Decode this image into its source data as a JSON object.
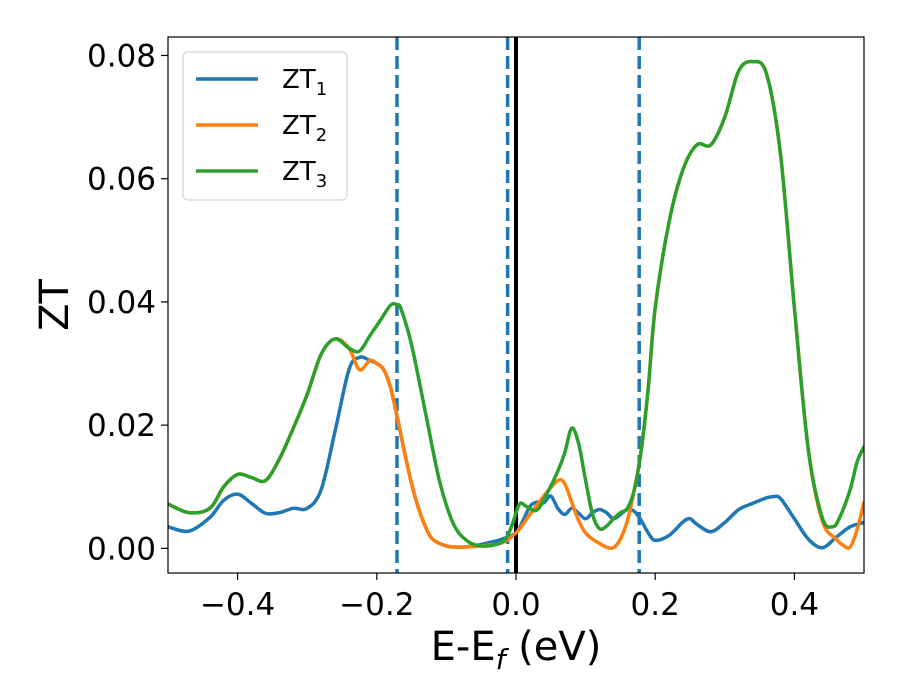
{
  "chart_data": {
    "type": "line",
    "xlabel": "E-E",
    "xlabel_sub": "f",
    "xlabel_unit": " (eV)",
    "ylabel": "ZT",
    "xlim": [
      -0.5,
      0.5
    ],
    "ylim": [
      -0.004,
      0.083
    ],
    "xticks": [
      -0.4,
      -0.2,
      0.0,
      0.2,
      0.4
    ],
    "xtick_labels": [
      "−0.4",
      "−0.2",
      "0.0",
      "0.2",
      "0.4"
    ],
    "yticks": [
      0.0,
      0.02,
      0.04,
      0.06,
      0.08
    ],
    "ytick_labels": [
      "0.00",
      "0.02",
      "0.04",
      "0.06",
      "0.08"
    ],
    "grid": false,
    "legend_position": "top-left",
    "vlines": [
      {
        "x": -0.171,
        "style": "dashed",
        "color": "#1f77b4"
      },
      {
        "x": -0.012,
        "style": "dashed",
        "color": "#1f77b4"
      },
      {
        "x": 0.0,
        "style": "solid",
        "color": "#000000"
      },
      {
        "x": 0.177,
        "style": "dashed",
        "color": "#1f77b4"
      }
    ],
    "series": [
      {
        "name": "ZT",
        "sub": "1",
        "color": "#1f77b4",
        "x": [
          -0.5,
          -0.47,
          -0.44,
          -0.42,
          -0.4,
          -0.38,
          -0.36,
          -0.34,
          -0.32,
          -0.3,
          -0.28,
          -0.26,
          -0.24,
          -0.225,
          -0.21,
          -0.2,
          -0.19,
          -0.18,
          -0.171,
          -0.16,
          -0.15,
          -0.14,
          -0.13,
          -0.12,
          -0.1,
          -0.08,
          -0.06,
          -0.04,
          -0.02,
          0.0,
          0.01,
          0.02,
          0.03,
          0.04,
          0.05,
          0.06,
          0.07,
          0.08,
          0.09,
          0.1,
          0.11,
          0.12,
          0.13,
          0.14,
          0.15,
          0.16,
          0.17,
          0.18,
          0.19,
          0.2,
          0.22,
          0.24,
          0.25,
          0.26,
          0.28,
          0.3,
          0.32,
          0.34,
          0.36,
          0.37,
          0.38,
          0.4,
          0.42,
          0.44,
          0.46,
          0.48,
          0.5
        ],
        "y": [
          0.0035,
          0.0028,
          0.005,
          0.0078,
          0.0088,
          0.0073,
          0.0057,
          0.0058,
          0.0065,
          0.0065,
          0.0095,
          0.019,
          0.029,
          0.031,
          0.0305,
          0.03,
          0.029,
          0.026,
          0.0215,
          0.0155,
          0.0105,
          0.0065,
          0.0035,
          0.0015,
          0.0004,
          0.0002,
          0.0004,
          0.0009,
          0.0015,
          0.0025,
          0.0045,
          0.0068,
          0.0075,
          0.0074,
          0.0085,
          0.0065,
          0.0055,
          0.0065,
          0.0057,
          0.0048,
          0.0058,
          0.0063,
          0.0058,
          0.0048,
          0.0055,
          0.0063,
          0.006,
          0.0045,
          0.0025,
          0.0013,
          0.0021,
          0.0043,
          0.0048,
          0.0039,
          0.0027,
          0.0042,
          0.0063,
          0.0073,
          0.0082,
          0.0084,
          0.0081,
          0.0048,
          0.0015,
          0.0001,
          0.0018,
          0.0035,
          0.0042
        ]
      },
      {
        "name": "ZT",
        "sub": "2",
        "color": "#ff7f0e",
        "x": [
          -0.5,
          -0.47,
          -0.44,
          -0.42,
          -0.4,
          -0.38,
          -0.36,
          -0.34,
          -0.32,
          -0.3,
          -0.28,
          -0.26,
          -0.24,
          -0.225,
          -0.21,
          -0.2,
          -0.19,
          -0.18,
          -0.171,
          -0.16,
          -0.15,
          -0.14,
          -0.13,
          -0.12,
          -0.1,
          -0.08,
          -0.06,
          -0.04,
          -0.02,
          0.0,
          0.02,
          0.04,
          0.06,
          0.07,
          0.08,
          0.09,
          0.1,
          0.11,
          0.12,
          0.13,
          0.14,
          0.15,
          0.16,
          0.17,
          0.18,
          0.19,
          0.2,
          0.22,
          0.24,
          0.26,
          0.28,
          0.3,
          0.32,
          0.34,
          0.36,
          0.38,
          0.4,
          0.42,
          0.44,
          0.46,
          0.47,
          0.48,
          0.49,
          0.5
        ],
        "y": [
          0.0072,
          0.0058,
          0.0065,
          0.01,
          0.012,
          0.0115,
          0.011,
          0.0145,
          0.0195,
          0.025,
          0.0315,
          0.034,
          0.0325,
          0.029,
          0.0305,
          0.03,
          0.029,
          0.026,
          0.0215,
          0.0155,
          0.0105,
          0.0065,
          0.0035,
          0.0015,
          0.0004,
          0.0002,
          0.0003,
          0.0005,
          0.0009,
          0.0025,
          0.0055,
          0.0085,
          0.011,
          0.0105,
          0.0075,
          0.0045,
          0.0025,
          0.0015,
          0.0008,
          0.0002,
          0.0001,
          0.0015,
          0.0045,
          0.0095,
          0.016,
          0.026,
          0.039,
          0.053,
          0.0615,
          0.0655,
          0.0655,
          0.07,
          0.0775,
          0.079,
          0.077,
          0.064,
          0.039,
          0.016,
          0.0045,
          0.0015,
          0.0005,
          0.0002,
          0.003,
          0.0075
        ]
      },
      {
        "name": "ZT",
        "sub": "3",
        "color": "#2ca02c",
        "x": [
          -0.5,
          -0.47,
          -0.44,
          -0.42,
          -0.4,
          -0.38,
          -0.36,
          -0.34,
          -0.32,
          -0.3,
          -0.28,
          -0.26,
          -0.24,
          -0.225,
          -0.21,
          -0.195,
          -0.18,
          -0.171,
          -0.165,
          -0.15,
          -0.13,
          -0.11,
          -0.09,
          -0.07,
          -0.05,
          -0.03,
          -0.015,
          -0.005,
          0.005,
          0.015,
          0.03,
          0.045,
          0.06,
          0.07,
          0.08,
          0.09,
          0.1,
          0.11,
          0.12,
          0.13,
          0.14,
          0.15,
          0.16,
          0.17,
          0.18,
          0.19,
          0.2,
          0.22,
          0.24,
          0.26,
          0.28,
          0.3,
          0.32,
          0.34,
          0.36,
          0.38,
          0.4,
          0.42,
          0.44,
          0.455,
          0.465,
          0.48,
          0.49,
          0.5
        ],
        "y": [
          0.0072,
          0.0058,
          0.0065,
          0.01,
          0.012,
          0.0115,
          0.011,
          0.0145,
          0.0195,
          0.025,
          0.0315,
          0.034,
          0.0325,
          0.032,
          0.0345,
          0.037,
          0.0395,
          0.0395,
          0.0388,
          0.033,
          0.022,
          0.011,
          0.004,
          0.0012,
          0.0004,
          0.0006,
          0.0015,
          0.004,
          0.0072,
          0.0068,
          0.0062,
          0.009,
          0.0125,
          0.0155,
          0.0195,
          0.017,
          0.011,
          0.0055,
          0.0032,
          0.0036,
          0.0048,
          0.0058,
          0.0065,
          0.0095,
          0.016,
          0.026,
          0.039,
          0.053,
          0.0615,
          0.0655,
          0.0655,
          0.07,
          0.0775,
          0.079,
          0.077,
          0.064,
          0.039,
          0.016,
          0.005,
          0.0035,
          0.005,
          0.0095,
          0.014,
          0.0165
        ]
      }
    ]
  }
}
